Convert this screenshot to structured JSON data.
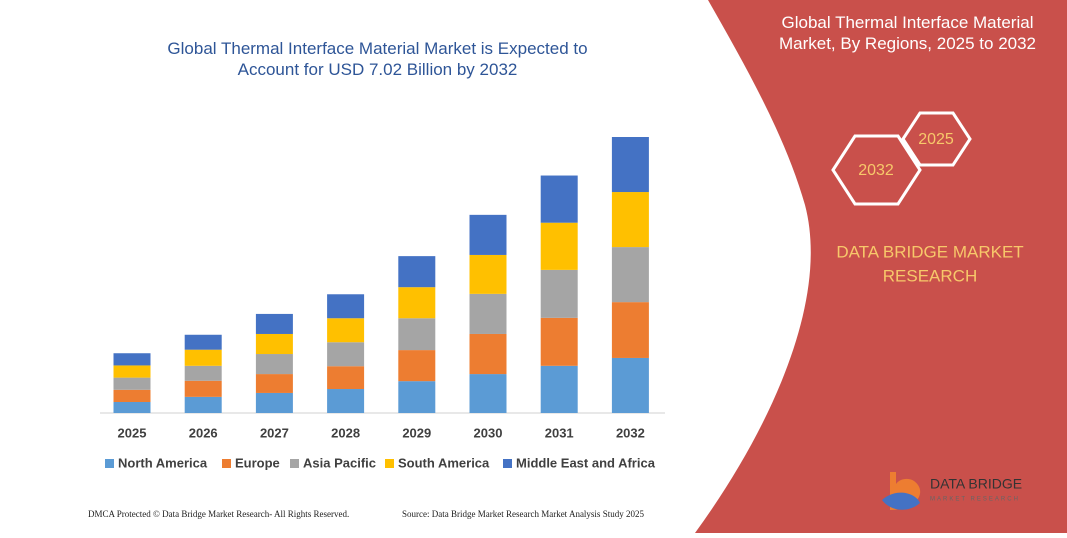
{
  "chart_data": {
    "type": "stacked_bar",
    "title": "Global Thermal Interface Material Market is Expected to Account for USD 7.02 Billion by 2032",
    "categories": [
      "2025",
      "2026",
      "2027",
      "2028",
      "2029",
      "2030",
      "2031",
      "2032"
    ],
    "series": [
      {
        "name": "North America",
        "color": "#5b9bd5",
        "values": [
          0.28,
          0.41,
          0.51,
          0.61,
          0.81,
          0.99,
          1.2,
          1.4
        ]
      },
      {
        "name": "Europe",
        "color": "#ed7d31",
        "values": [
          0.31,
          0.41,
          0.48,
          0.58,
          0.79,
          1.02,
          1.22,
          1.42
        ]
      },
      {
        "name": "Asia Pacific",
        "color": "#a5a5a5",
        "values": [
          0.31,
          0.38,
          0.51,
          0.61,
          0.81,
          1.02,
          1.22,
          1.4
        ]
      },
      {
        "name": "South America",
        "color": "#ffc000",
        "values": [
          0.31,
          0.41,
          0.51,
          0.61,
          0.79,
          0.99,
          1.2,
          1.4
        ]
      },
      {
        "name": "Middle East and Africa",
        "color": "#4472c4",
        "values": [
          0.31,
          0.38,
          0.51,
          0.61,
          0.79,
          1.02,
          1.2,
          1.4
        ]
      }
    ],
    "legend": "bottom"
  },
  "panel": {
    "title": "Global Thermal Interface Material Market, By Regions, 2025 to 2032",
    "hexagons": [
      "2032",
      "2025"
    ],
    "brand": [
      "DATA BRIDGE MARKET",
      "RESEARCH"
    ]
  },
  "logo": {
    "name": "DATA BRIDGE",
    "tagline": "MARKET RESEARCH"
  },
  "footer": {
    "left": "DMCA Protected © Data Bridge Market Research-  All Rights Reserved.",
    "right": "Source: Data Bridge Market Research  Market Analysis Study 2025"
  }
}
